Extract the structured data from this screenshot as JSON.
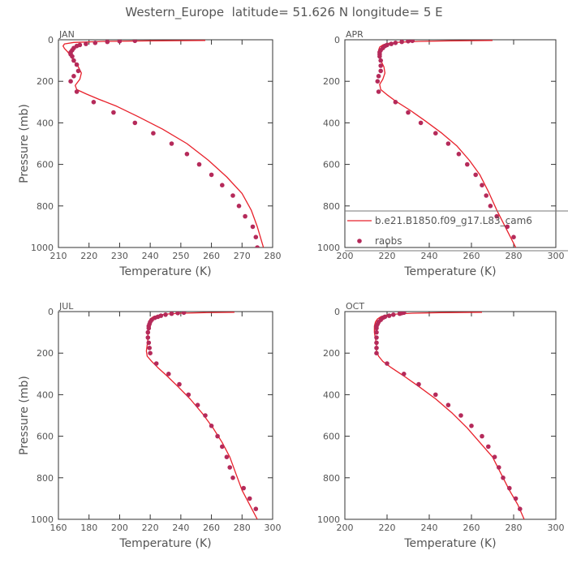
{
  "page_title": "Western_Europe  latitude= 51.626 N longitude= 5 E",
  "colors": {
    "model": "#e8212b",
    "obs": "#b52a5a",
    "axis": "#333333",
    "text": "#555555"
  },
  "legend": {
    "entries": [
      {
        "label": "b.e21.B1850.f09_g17.L83_cam6",
        "marker": "line"
      },
      {
        "label": "raobs",
        "marker": "dot"
      }
    ]
  },
  "chart_data": [
    {
      "type": "line",
      "panel_label": "JAN",
      "xlabel": "Temperature (K)",
      "ylabel": "Pressure (mb)",
      "xlim": [
        210,
        280
      ],
      "ylim": [
        1000,
        0
      ],
      "y_inverted": true,
      "xticks": [
        210,
        220,
        230,
        240,
        250,
        260,
        270,
        280
      ],
      "yticks": [
        0,
        200,
        400,
        600,
        800,
        1000
      ],
      "series": [
        {
          "marker": "line",
          "points": [
            [
              258,
              3
            ],
            [
              240,
              5
            ],
            [
              225,
              8
            ],
            [
              215,
              13
            ],
            [
              212,
              20
            ],
            [
              211.5,
              30
            ],
            [
              212,
              42
            ],
            [
              213,
              58
            ],
            [
              214,
              80
            ],
            [
              215,
              100
            ],
            [
              216.5,
              130
            ],
            [
              217.5,
              160
            ],
            [
              217,
              190
            ],
            [
              215.5,
              220
            ],
            [
              216,
              240
            ],
            [
              219,
              260
            ],
            [
              223,
              285
            ],
            [
              229,
              320
            ],
            [
              236,
              370
            ],
            [
              244,
              430
            ],
            [
              252,
              500
            ],
            [
              259,
              580
            ],
            [
              265,
              660
            ],
            [
              270,
              740
            ],
            [
              273,
              820
            ],
            [
              275,
              900
            ],
            [
              277,
              1000
            ]
          ]
        },
        {
          "marker": "dot",
          "points": [
            [
              235,
              5
            ],
            [
              230,
              7
            ],
            [
              226,
              10
            ],
            [
              222,
              15
            ],
            [
              219,
              20
            ],
            [
              217,
              25
            ],
            [
              216,
              30
            ],
            [
              215,
              40
            ],
            [
              214.5,
              50
            ],
            [
              214,
              60
            ],
            [
              214,
              70
            ],
            [
              214.5,
              80
            ],
            [
              215,
              100
            ],
            [
              216,
              120
            ],
            [
              216.5,
              150
            ],
            [
              215,
              175
            ],
            [
              214,
              200
            ],
            [
              216,
              250
            ],
            [
              221.5,
              300
            ],
            [
              228,
              350
            ],
            [
              235,
              400
            ],
            [
              241,
              450
            ],
            [
              247,
              500
            ],
            [
              252,
              550
            ],
            [
              256,
              600
            ],
            [
              260,
              650
            ],
            [
              263.5,
              700
            ],
            [
              267,
              750
            ],
            [
              269,
              800
            ],
            [
              271,
              850
            ],
            [
              273.5,
              900
            ],
            [
              274.5,
              950
            ],
            [
              275,
              1000
            ]
          ]
        }
      ]
    },
    {
      "type": "line",
      "panel_label": "APR",
      "xlabel": "Temperature (K)",
      "ylabel": "",
      "xlim": [
        200,
        300
      ],
      "ylim": [
        1000,
        0
      ],
      "y_inverted": true,
      "xticks": [
        200,
        220,
        240,
        260,
        280,
        300
      ],
      "yticks": [
        0,
        200,
        400,
        600,
        800,
        1000
      ],
      "series": [
        {
          "marker": "line",
          "points": [
            [
              270,
              3
            ],
            [
              250,
              5
            ],
            [
              235,
              8
            ],
            [
              225,
              12
            ],
            [
              220,
              18
            ],
            [
              218,
              25
            ],
            [
              216.5,
              35
            ],
            [
              216,
              50
            ],
            [
              216,
              70
            ],
            [
              217,
              100
            ],
            [
              218.5,
              130
            ],
            [
              219,
              160
            ],
            [
              218,
              190
            ],
            [
              216.5,
              215
            ],
            [
              217,
              240
            ],
            [
              220,
              265
            ],
            [
              224,
              295
            ],
            [
              231,
              340
            ],
            [
              238,
              390
            ],
            [
              246,
              450
            ],
            [
              253,
              510
            ],
            [
              259,
              580
            ],
            [
              264,
              650
            ],
            [
              268,
              730
            ],
            [
              272,
              820
            ],
            [
              276,
              900
            ],
            [
              281,
              1000
            ]
          ]
        },
        {
          "marker": "dot",
          "points": [
            [
              232,
              5
            ],
            [
              230,
              7
            ],
            [
              227,
              10
            ],
            [
              224,
              15
            ],
            [
              222,
              20
            ],
            [
              220,
              25
            ],
            [
              219,
              30
            ],
            [
              218,
              40
            ],
            [
              217,
              50
            ],
            [
              216.5,
              60
            ],
            [
              216.5,
              70
            ],
            [
              216.5,
              80
            ],
            [
              217,
              100
            ],
            [
              217,
              125
            ],
            [
              217,
              150
            ],
            [
              216,
              175
            ],
            [
              215.5,
              200
            ],
            [
              216,
              250
            ],
            [
              224,
              300
            ],
            [
              230,
              350
            ],
            [
              236,
              400
            ],
            [
              243,
              450
            ],
            [
              249,
              500
            ],
            [
              254,
              550
            ],
            [
              258,
              600
            ],
            [
              262,
              650
            ],
            [
              265,
              700
            ],
            [
              267,
              750
            ],
            [
              269,
              800
            ],
            [
              272,
              850
            ],
            [
              277,
              900
            ],
            [
              280,
              950
            ]
          ]
        }
      ]
    },
    {
      "type": "line",
      "panel_label": "JUL",
      "xlabel": "Temperature (K)",
      "ylabel": "Pressure (mb)",
      "xlim": [
        160,
        300
      ],
      "ylim": [
        1000,
        0
      ],
      "y_inverted": true,
      "xticks": [
        160,
        180,
        200,
        220,
        240,
        260,
        280,
        300
      ],
      "yticks": [
        0,
        200,
        400,
        600,
        800,
        1000
      ],
      "series": [
        {
          "marker": "line",
          "points": [
            [
              275,
              3
            ],
            [
              255,
              5
            ],
            [
              240,
              8
            ],
            [
              230,
              12
            ],
            [
              225,
              18
            ],
            [
              222,
              25
            ],
            [
              220,
              35
            ],
            [
              219,
              50
            ],
            [
              218.5,
              70
            ],
            [
              218.5,
              100
            ],
            [
              218.5,
              130
            ],
            [
              218,
              160
            ],
            [
              217.5,
              190
            ],
            [
              218,
              215
            ],
            [
              221,
              240
            ],
            [
              225,
              270
            ],
            [
              231,
              310
            ],
            [
              238,
              360
            ],
            [
              246,
              420
            ],
            [
              254,
              490
            ],
            [
              261,
              560
            ],
            [
              267,
              630
            ],
            [
              272,
              700
            ],
            [
              276,
              780
            ],
            [
              280,
              860
            ],
            [
              285,
              930
            ],
            [
              290,
              1000
            ]
          ]
        },
        {
          "marker": "dot",
          "points": [
            [
              242,
              5
            ],
            [
              238,
              7
            ],
            [
              234,
              10
            ],
            [
              230,
              15
            ],
            [
              227,
              20
            ],
            [
              225,
              25
            ],
            [
              223,
              30
            ],
            [
              221,
              40
            ],
            [
              220,
              50
            ],
            [
              219.5,
              60
            ],
            [
              219,
              70
            ],
            [
              219,
              80
            ],
            [
              218.5,
              100
            ],
            [
              218.5,
              125
            ],
            [
              219,
              150
            ],
            [
              219.5,
              175
            ],
            [
              220,
              200
            ],
            [
              224,
              250
            ],
            [
              232,
              300
            ],
            [
              239,
              350
            ],
            [
              245,
              400
            ],
            [
              251,
              450
            ],
            [
              256,
              500
            ],
            [
              260,
              550
            ],
            [
              264,
              600
            ],
            [
              267,
              650
            ],
            [
              270,
              700
            ],
            [
              272,
              750
            ],
            [
              274,
              800
            ],
            [
              281,
              850
            ],
            [
              285,
              900
            ],
            [
              289,
              950
            ]
          ]
        }
      ]
    },
    {
      "type": "line",
      "panel_label": "OCT",
      "xlabel": "Temperature (K)",
      "ylabel": "",
      "xlim": [
        200,
        300
      ],
      "ylim": [
        1000,
        0
      ],
      "y_inverted": true,
      "xticks": [
        200,
        220,
        240,
        260,
        280,
        300
      ],
      "yticks": [
        0,
        200,
        400,
        600,
        800,
        1000
      ],
      "series": [
        {
          "marker": "line",
          "points": [
            [
              265,
              3
            ],
            [
              245,
              5
            ],
            [
              232,
              8
            ],
            [
              224,
              12
            ],
            [
              219,
              18
            ],
            [
              217,
              25
            ],
            [
              215.5,
              35
            ],
            [
              214.5,
              50
            ],
            [
              214,
              70
            ],
            [
              214,
              100
            ],
            [
              214.5,
              130
            ],
            [
              215,
              160
            ],
            [
              215,
              190
            ],
            [
              216,
              215
            ],
            [
              218,
              240
            ],
            [
              222,
              270
            ],
            [
              228,
              310
            ],
            [
              235,
              360
            ],
            [
              243,
              420
            ],
            [
              251,
              490
            ],
            [
              258,
              560
            ],
            [
              264,
              630
            ],
            [
              270,
              700
            ],
            [
              274,
              780
            ],
            [
              278,
              860
            ],
            [
              282,
              930
            ],
            [
              285,
              1000
            ]
          ]
        },
        {
          "marker": "dot",
          "points": [
            [
              228,
              5
            ],
            [
              227,
              7
            ],
            [
              226,
              10
            ],
            [
              223,
              15
            ],
            [
              221,
              20
            ],
            [
              219,
              25
            ],
            [
              218,
              30
            ],
            [
              217,
              40
            ],
            [
              216,
              50
            ],
            [
              215.5,
              60
            ],
            [
              215,
              70
            ],
            [
              215,
              80
            ],
            [
              215,
              100
            ],
            [
              215,
              125
            ],
            [
              215,
              150
            ],
            [
              215,
              175
            ],
            [
              215,
              200
            ],
            [
              220,
              250
            ],
            [
              228,
              300
            ],
            [
              235,
              350
            ],
            [
              243,
              400
            ],
            [
              249,
              450
            ],
            [
              255,
              500
            ],
            [
              260,
              550
            ],
            [
              265,
              600
            ],
            [
              268,
              650
            ],
            [
              271,
              700
            ],
            [
              273,
              750
            ],
            [
              275,
              800
            ],
            [
              278,
              850
            ],
            [
              281,
              900
            ],
            [
              283,
              950
            ]
          ]
        }
      ]
    }
  ]
}
